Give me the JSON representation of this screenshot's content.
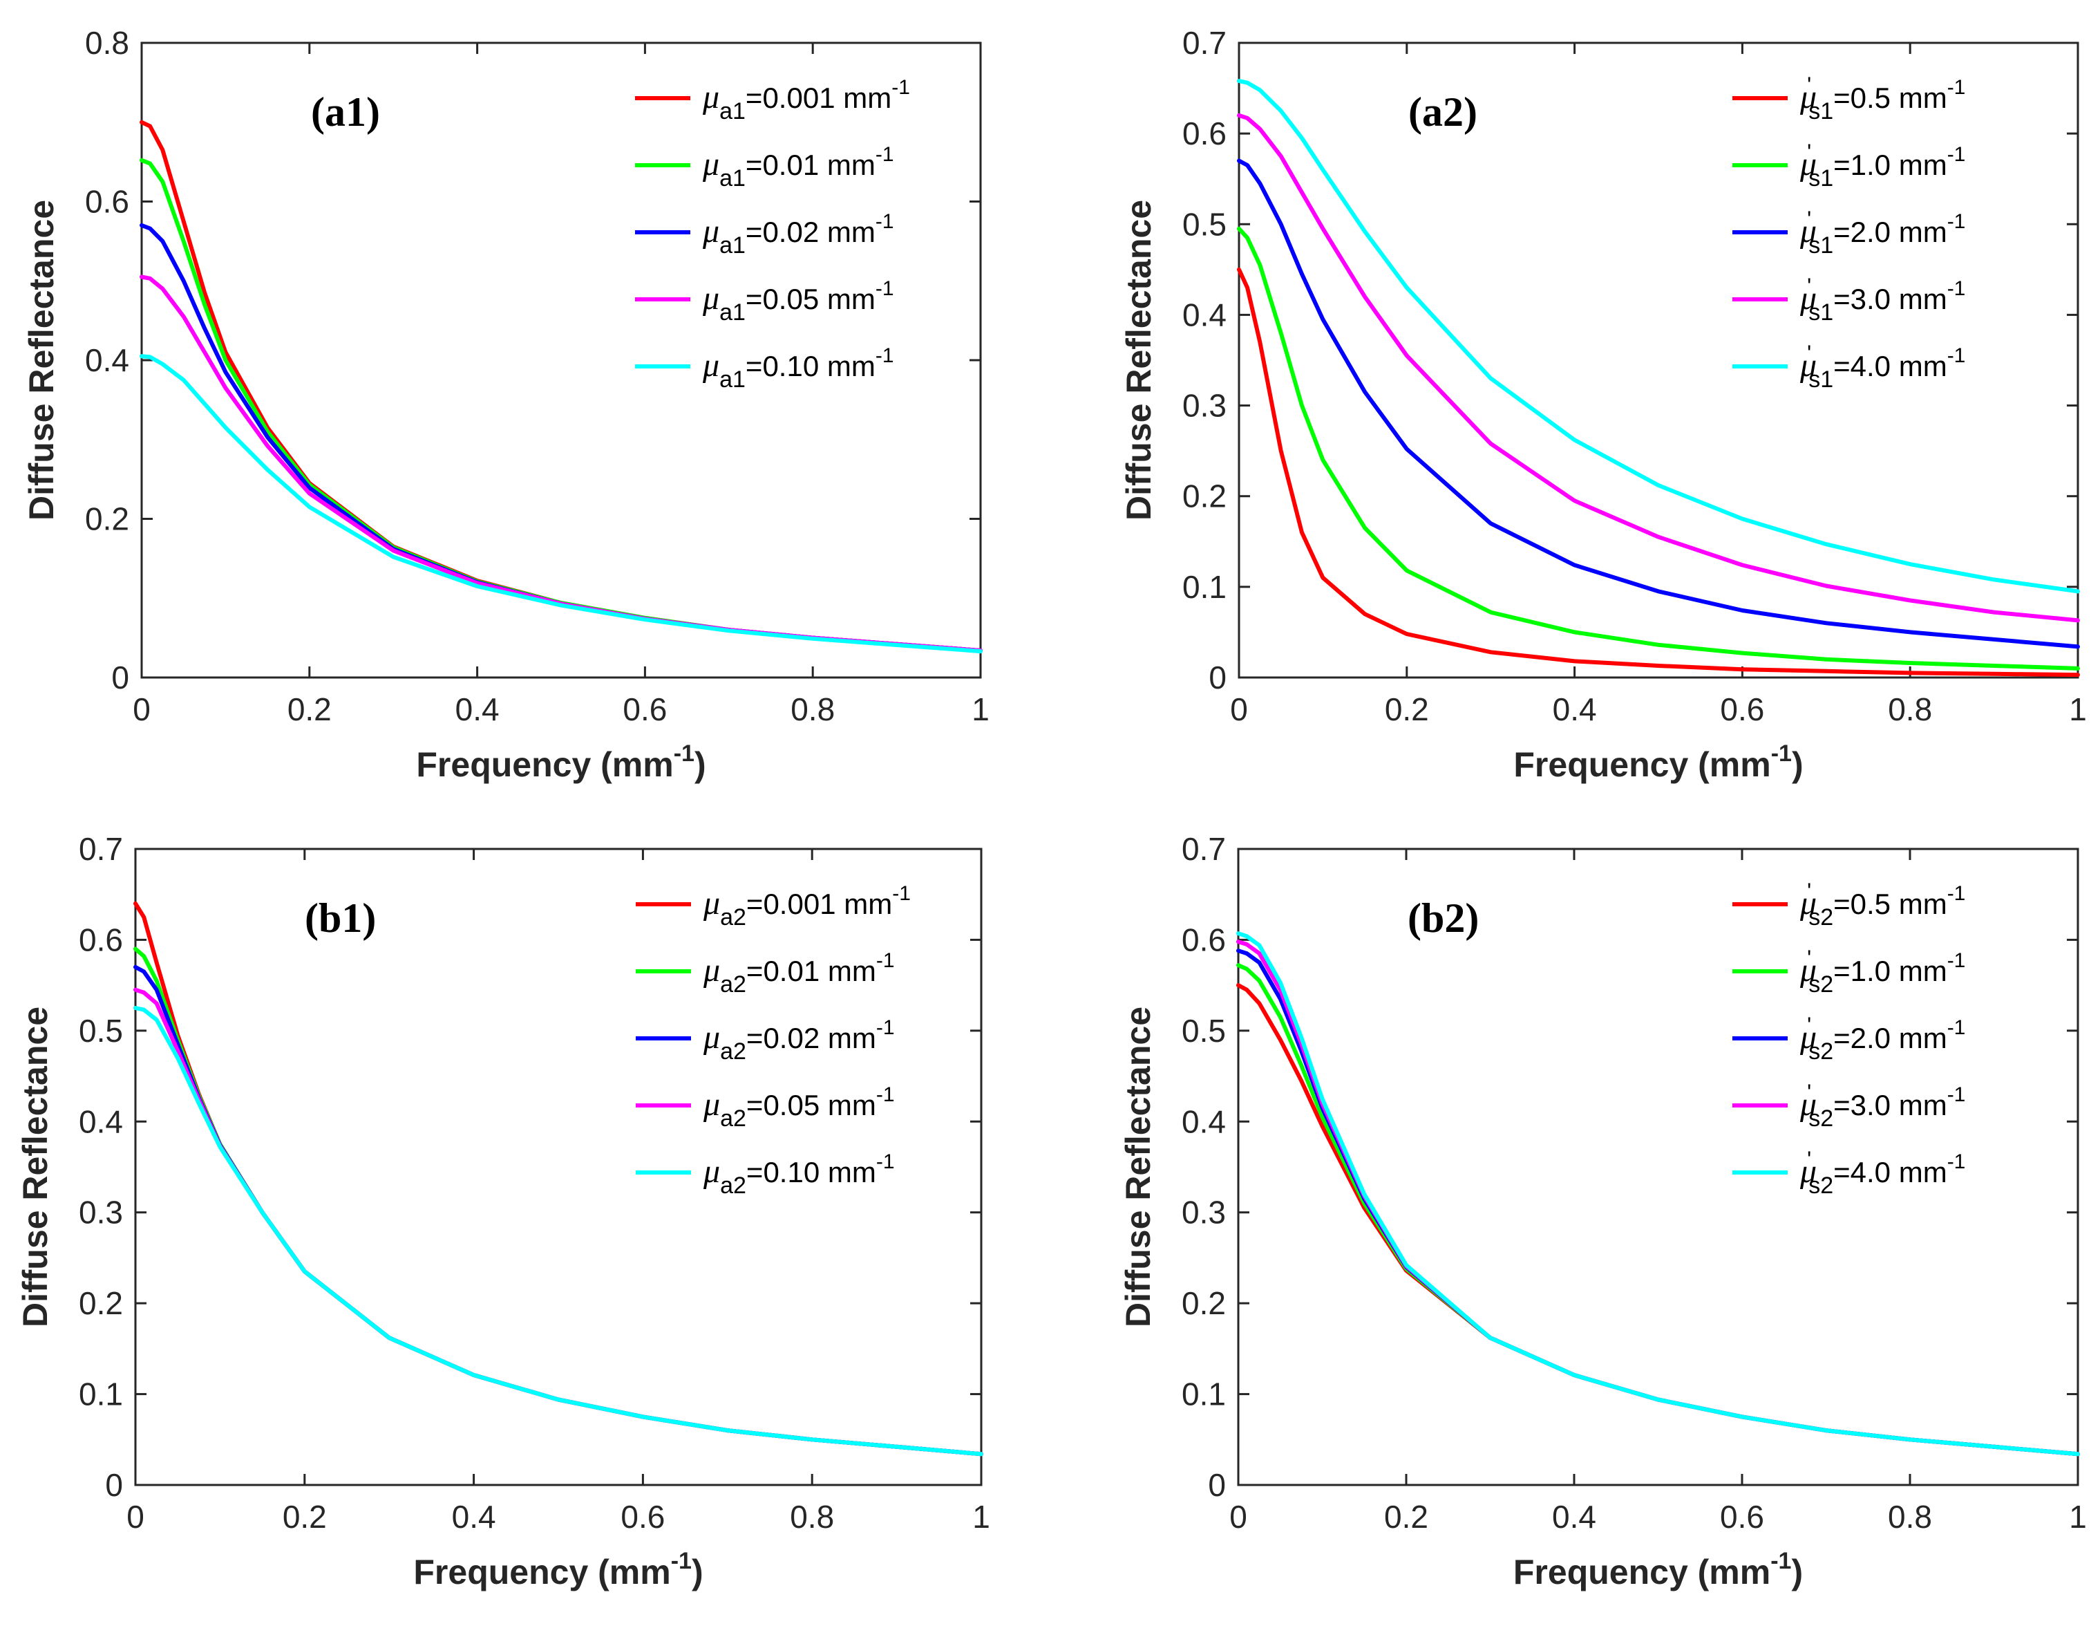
{
  "figure": {
    "xlabel": "Frequency (mm",
    "xlabel_sup": "-1",
    "xlabel_close": ")",
    "ylabel": "Diffuse Reflectance"
  },
  "chart_data": [
    {
      "id": "a1",
      "type": "line",
      "title": "(a1)",
      "xlabel": "Frequency (mm-1)",
      "ylabel": "Diffuse Reflectance",
      "xlim": [
        0,
        1
      ],
      "ylim": [
        0,
        0.8
      ],
      "xticks": [
        "0",
        "0.2",
        "0.4",
        "0.6",
        "0.8",
        "1"
      ],
      "yticks": [
        "0",
        "0.2",
        "0.4",
        "0.6",
        "0.8"
      ],
      "legend_position": "top-right",
      "x": [
        0,
        0.01,
        0.025,
        0.05,
        0.075,
        0.1,
        0.15,
        0.2,
        0.3,
        0.4,
        0.5,
        0.6,
        0.7,
        0.8,
        0.9,
        1.0
      ],
      "series": [
        {
          "legend": {
            "symbol": "μ",
            "sub": "a1",
            "prime": "",
            "value": "=0.001 mm",
            "sup": "-1"
          },
          "color": "#ff0000",
          "values": [
            0.7,
            0.695,
            0.665,
            0.575,
            0.485,
            0.41,
            0.315,
            0.245,
            0.165,
            0.122,
            0.094,
            0.075,
            0.06,
            0.05,
            0.042,
            0.034
          ]
        },
        {
          "legend": {
            "symbol": "μ",
            "sub": "a1",
            "prime": "",
            "value": "=0.01 mm",
            "sup": "-1"
          },
          "color": "#00ff00",
          "values": [
            0.652,
            0.648,
            0.625,
            0.55,
            0.47,
            0.4,
            0.31,
            0.243,
            0.164,
            0.121,
            0.094,
            0.075,
            0.06,
            0.05,
            0.042,
            0.034
          ]
        },
        {
          "legend": {
            "symbol": "μ",
            "sub": "a1",
            "prime": "",
            "value": "=0.02 mm",
            "sup": "-1"
          },
          "color": "#0000ff",
          "values": [
            0.57,
            0.566,
            0.55,
            0.5,
            0.44,
            0.385,
            0.303,
            0.239,
            0.162,
            0.12,
            0.093,
            0.074,
            0.06,
            0.05,
            0.042,
            0.034
          ]
        },
        {
          "legend": {
            "symbol": "μ",
            "sub": "a1",
            "prime": "",
            "value": "=0.05 mm",
            "sup": "-1"
          },
          "color": "#ff00ff",
          "values": [
            0.505,
            0.503,
            0.49,
            0.455,
            0.41,
            0.365,
            0.292,
            0.232,
            0.16,
            0.119,
            0.093,
            0.074,
            0.06,
            0.05,
            0.042,
            0.034
          ]
        },
        {
          "legend": {
            "symbol": "μ",
            "sub": "a1",
            "prime": "",
            "value": "=0.10 mm",
            "sup": "-1"
          },
          "color": "#00ffff",
          "values": [
            0.405,
            0.404,
            0.395,
            0.375,
            0.345,
            0.315,
            0.262,
            0.215,
            0.152,
            0.115,
            0.091,
            0.073,
            0.059,
            0.049,
            0.041,
            0.033
          ]
        }
      ]
    },
    {
      "id": "a2",
      "type": "line",
      "title": "(a2)",
      "xlabel": "Frequency (mm-1)",
      "ylabel": "Diffuse Reflectance",
      "xlim": [
        0,
        1
      ],
      "ylim": [
        0,
        0.7
      ],
      "xticks": [
        "0",
        "0.2",
        "0.4",
        "0.6",
        "0.8",
        "1"
      ],
      "yticks": [
        "0",
        "0.1",
        "0.2",
        "0.3",
        "0.4",
        "0.5",
        "0.6",
        "0.7"
      ],
      "legend_position": "top-right",
      "x": [
        0,
        0.01,
        0.025,
        0.05,
        0.075,
        0.1,
        0.15,
        0.2,
        0.3,
        0.4,
        0.5,
        0.6,
        0.7,
        0.8,
        0.9,
        1.0
      ],
      "series": [
        {
          "legend": {
            "symbol": "μ",
            "sub": "s1",
            "prime": "'",
            "value": "=0.5 mm",
            "sup": "-1"
          },
          "color": "#ff0000",
          "values": [
            0.45,
            0.43,
            0.37,
            0.25,
            0.16,
            0.11,
            0.07,
            0.048,
            0.028,
            0.018,
            0.013,
            0.009,
            0.007,
            0.005,
            0.004,
            0.003
          ]
        },
        {
          "legend": {
            "symbol": "μ",
            "sub": "s1",
            "prime": "'",
            "value": "=1.0 mm",
            "sup": "-1"
          },
          "color": "#00ff00",
          "values": [
            0.495,
            0.485,
            0.455,
            0.38,
            0.3,
            0.24,
            0.165,
            0.118,
            0.072,
            0.05,
            0.036,
            0.027,
            0.02,
            0.016,
            0.013,
            0.01
          ]
        },
        {
          "legend": {
            "symbol": "μ",
            "sub": "s1",
            "prime": "'",
            "value": "=2.0 mm",
            "sup": "-1"
          },
          "color": "#0000ff",
          "values": [
            0.57,
            0.565,
            0.545,
            0.5,
            0.445,
            0.395,
            0.315,
            0.252,
            0.17,
            0.124,
            0.095,
            0.074,
            0.06,
            0.05,
            0.042,
            0.034
          ]
        },
        {
          "legend": {
            "symbol": "μ",
            "sub": "s1",
            "prime": "'",
            "value": "=3.0 mm",
            "sup": "-1"
          },
          "color": "#ff00ff",
          "values": [
            0.62,
            0.617,
            0.605,
            0.575,
            0.535,
            0.495,
            0.42,
            0.355,
            0.258,
            0.195,
            0.155,
            0.124,
            0.101,
            0.085,
            0.072,
            0.063
          ]
        },
        {
          "legend": {
            "symbol": "μ",
            "sub": "s1",
            "prime": "'",
            "value": "=4.0 mm",
            "sup": "-1"
          },
          "color": "#00ffff",
          "values": [
            0.658,
            0.656,
            0.648,
            0.625,
            0.595,
            0.56,
            0.492,
            0.43,
            0.33,
            0.262,
            0.212,
            0.175,
            0.147,
            0.125,
            0.108,
            0.095
          ]
        }
      ]
    },
    {
      "id": "b1",
      "type": "line",
      "title": "(b1)",
      "xlabel": "Frequency (mm-1)",
      "ylabel": "Diffuse Reflectance",
      "xlim": [
        0,
        1
      ],
      "ylim": [
        0,
        0.7
      ],
      "xticks": [
        "0",
        "0.2",
        "0.4",
        "0.6",
        "0.8",
        "1"
      ],
      "yticks": [
        "0",
        "0.1",
        "0.2",
        "0.3",
        "0.4",
        "0.5",
        "0.6",
        "0.7"
      ],
      "legend_position": "top-right",
      "x": [
        0,
        0.01,
        0.025,
        0.05,
        0.075,
        0.1,
        0.15,
        0.2,
        0.3,
        0.4,
        0.5,
        0.6,
        0.7,
        0.8,
        0.9,
        1.0
      ],
      "series": [
        {
          "legend": {
            "symbol": "μ",
            "sub": "a2",
            "prime": "",
            "value": "=0.001 mm",
            "sup": "-1"
          },
          "color": "#ff0000",
          "values": [
            0.64,
            0.625,
            0.575,
            0.495,
            0.43,
            0.375,
            0.3,
            0.235,
            0.162,
            0.121,
            0.094,
            0.075,
            0.06,
            0.05,
            0.042,
            0.034
          ]
        },
        {
          "legend": {
            "symbol": "μ",
            "sub": "a2",
            "prime": "",
            "value": "=0.01 mm",
            "sup": "-1"
          },
          "color": "#00ff00",
          "values": [
            0.59,
            0.582,
            0.555,
            0.49,
            0.428,
            0.375,
            0.3,
            0.235,
            0.162,
            0.121,
            0.094,
            0.075,
            0.06,
            0.05,
            0.042,
            0.034
          ]
        },
        {
          "legend": {
            "symbol": "μ",
            "sub": "a2",
            "prime": "",
            "value": "=0.02 mm",
            "sup": "-1"
          },
          "color": "#0000ff",
          "values": [
            0.57,
            0.565,
            0.545,
            0.485,
            0.426,
            0.374,
            0.3,
            0.235,
            0.162,
            0.121,
            0.094,
            0.075,
            0.06,
            0.05,
            0.042,
            0.034
          ]
        },
        {
          "legend": {
            "symbol": "μ",
            "sub": "a2",
            "prime": "",
            "value": "=0.05 mm",
            "sup": "-1"
          },
          "color": "#ff00ff",
          "values": [
            0.545,
            0.542,
            0.53,
            0.478,
            0.424,
            0.373,
            0.3,
            0.235,
            0.162,
            0.121,
            0.094,
            0.075,
            0.06,
            0.05,
            0.042,
            0.034
          ]
        },
        {
          "legend": {
            "symbol": "μ",
            "sub": "a2",
            "prime": "",
            "value": "=0.10 mm",
            "sup": "-1"
          },
          "color": "#00ffff",
          "values": [
            0.525,
            0.523,
            0.512,
            0.47,
            0.42,
            0.372,
            0.3,
            0.235,
            0.162,
            0.121,
            0.094,
            0.075,
            0.06,
            0.05,
            0.042,
            0.034
          ]
        }
      ]
    },
    {
      "id": "b2",
      "type": "line",
      "title": "(b2)",
      "xlabel": "Frequency (mm-1)",
      "ylabel": "Diffuse Reflectance",
      "xlim": [
        0,
        1
      ],
      "ylim": [
        0,
        0.7
      ],
      "xticks": [
        "0",
        "0.2",
        "0.4",
        "0.6",
        "0.8",
        "1"
      ],
      "yticks": [
        "0",
        "0.1",
        "0.2",
        "0.3",
        "0.4",
        "0.5",
        "0.6",
        "0.7"
      ],
      "legend_position": "top-right",
      "x": [
        0,
        0.01,
        0.025,
        0.05,
        0.075,
        0.1,
        0.15,
        0.2,
        0.3,
        0.4,
        0.5,
        0.6,
        0.7,
        0.8,
        0.9,
        1.0
      ],
      "series": [
        {
          "legend": {
            "symbol": "μ",
            "sub": "s2",
            "prime": "'",
            "value": "=0.5 mm",
            "sup": "-1"
          },
          "color": "#ff0000",
          "values": [
            0.55,
            0.545,
            0.53,
            0.49,
            0.445,
            0.395,
            0.305,
            0.236,
            0.162,
            0.121,
            0.094,
            0.075,
            0.06,
            0.05,
            0.042,
            0.034
          ]
        },
        {
          "legend": {
            "symbol": "μ",
            "sub": "s2",
            "prime": "'",
            "value": "=1.0 mm",
            "sup": "-1"
          },
          "color": "#00ff00",
          "values": [
            0.572,
            0.568,
            0.555,
            0.515,
            0.462,
            0.405,
            0.31,
            0.238,
            0.162,
            0.121,
            0.094,
            0.075,
            0.06,
            0.05,
            0.042,
            0.034
          ]
        },
        {
          "legend": {
            "symbol": "μ",
            "sub": "s2",
            "prime": "'",
            "value": "=2.0 mm",
            "sup": "-1"
          },
          "color": "#0000ff",
          "values": [
            0.588,
            0.585,
            0.575,
            0.535,
            0.478,
            0.415,
            0.315,
            0.24,
            0.162,
            0.121,
            0.094,
            0.075,
            0.06,
            0.05,
            0.042,
            0.034
          ]
        },
        {
          "legend": {
            "symbol": "μ",
            "sub": "s2",
            "prime": "'",
            "value": "=3.0 mm",
            "sup": "-1"
          },
          "color": "#ff00ff",
          "values": [
            0.598,
            0.595,
            0.585,
            0.545,
            0.486,
            0.42,
            0.318,
            0.241,
            0.162,
            0.121,
            0.094,
            0.075,
            0.06,
            0.05,
            0.042,
            0.034
          ]
        },
        {
          "legend": {
            "symbol": "μ",
            "sub": "s2",
            "prime": "'",
            "value": "=4.0 mm",
            "sup": "-1"
          },
          "color": "#00ffff",
          "values": [
            0.607,
            0.604,
            0.594,
            0.553,
            0.493,
            0.425,
            0.32,
            0.242,
            0.162,
            0.121,
            0.094,
            0.075,
            0.06,
            0.05,
            0.042,
            0.034
          ]
        }
      ]
    }
  ]
}
